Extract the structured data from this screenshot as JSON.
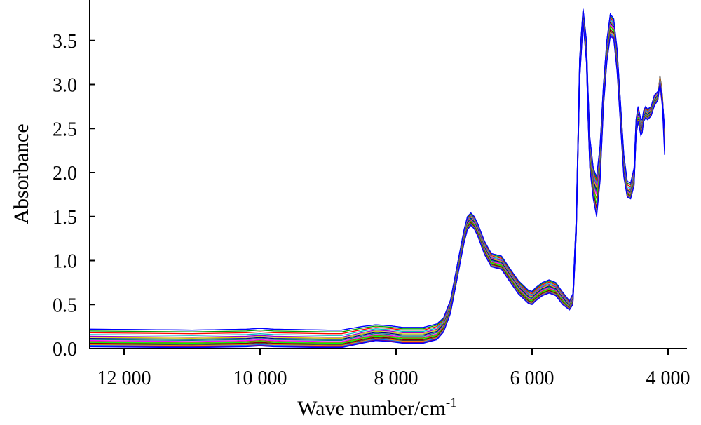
{
  "chart_data": {
    "type": "line",
    "xlabel": "Wave number/cm",
    "xlabel_sup": "-1",
    "ylabel": "Absorbance",
    "xlim": [
      12500,
      4000
    ],
    "ylim": [
      0.0,
      3.9
    ],
    "x_ticks": [
      12000,
      10000,
      8000,
      6000,
      4000
    ],
    "x_tick_labels": [
      "12 000",
      "10 000",
      "8 000",
      "6 000",
      "4 000"
    ],
    "y_ticks": [
      0.0,
      0.5,
      1.0,
      1.5,
      2.0,
      2.5,
      3.0,
      3.5
    ],
    "y_tick_labels": [
      "0.0",
      "0.5",
      "1.0",
      "1.5",
      "2.0",
      "2.5",
      "3.0",
      "3.5"
    ],
    "grid": false,
    "legend": "none",
    "x": [
      12500,
      11000,
      10200,
      10000,
      9800,
      9000,
      8800,
      8500,
      8300,
      8100,
      7900,
      7600,
      7400,
      7300,
      7200,
      7100,
      7000,
      6950,
      6900,
      6850,
      6800,
      6700,
      6600,
      6450,
      6300,
      6200,
      6050,
      6000,
      5950,
      5850,
      5750,
      5650,
      5550,
      5450,
      5400,
      5350,
      5300,
      5250,
      5200,
      5180,
      5150,
      5100,
      5050,
      5000,
      4950,
      4900,
      4850,
      4800,
      4750,
      4700,
      4650,
      4600,
      4550,
      4500,
      4470,
      4440,
      4400,
      4380,
      4360,
      4330,
      4300,
      4250,
      4200,
      4150,
      4120,
      4100,
      4080,
      4050
    ],
    "series": [
      {
        "values": [
          0.22,
          0.21,
          0.22,
          0.23,
          0.22,
          0.21,
          0.21,
          0.25,
          0.27,
          0.26,
          0.24,
          0.24,
          0.28,
          0.35,
          0.55,
          0.95,
          1.35,
          1.5,
          1.54,
          1.5,
          1.42,
          1.22,
          1.08,
          1.05,
          0.88,
          0.77,
          0.66,
          0.65,
          0.69,
          0.75,
          0.78,
          0.75,
          0.64,
          0.54,
          0.62,
          1.5,
          3.3,
          3.86,
          3.5,
          3.0,
          2.4,
          2.05,
          1.95,
          2.3,
          3.0,
          3.5,
          3.8,
          3.75,
          3.4,
          2.8,
          2.2,
          1.9,
          1.88,
          2.05,
          2.6,
          2.75,
          2.6,
          2.6,
          2.7,
          2.75,
          2.72,
          2.75,
          2.88,
          2.92,
          2.98,
          2.9,
          2.8,
          2.5
        ]
      },
      {
        "values": [
          0.14,
          0.13,
          0.14,
          0.15,
          0.14,
          0.13,
          0.13,
          0.18,
          0.21,
          0.2,
          0.18,
          0.18,
          0.22,
          0.3,
          0.5,
          0.9,
          1.3,
          1.45,
          1.5,
          1.46,
          1.38,
          1.17,
          1.03,
          1.0,
          0.83,
          0.72,
          0.61,
          0.6,
          0.64,
          0.7,
          0.73,
          0.7,
          0.6,
          0.5,
          0.58,
          1.45,
          3.2,
          3.82,
          3.4,
          2.9,
          2.3,
          1.95,
          1.85,
          2.2,
          2.9,
          3.4,
          3.72,
          3.68,
          3.3,
          2.7,
          2.1,
          1.82,
          1.8,
          1.97,
          2.52,
          2.68,
          2.52,
          2.55,
          2.65,
          2.7,
          2.68,
          2.72,
          2.85,
          2.9,
          2.95,
          2.85,
          2.75,
          2.45
        ]
      },
      {
        "values": [
          0.09,
          0.08,
          0.09,
          0.1,
          0.09,
          0.08,
          0.08,
          0.13,
          0.16,
          0.15,
          0.13,
          0.13,
          0.17,
          0.26,
          0.46,
          0.86,
          1.26,
          1.41,
          1.46,
          1.42,
          1.34,
          1.13,
          0.99,
          0.96,
          0.79,
          0.68,
          0.57,
          0.56,
          0.6,
          0.66,
          0.69,
          0.66,
          0.56,
          0.47,
          0.55,
          1.4,
          3.15,
          3.78,
          3.35,
          2.8,
          2.2,
          1.85,
          1.75,
          2.1,
          2.85,
          3.35,
          3.68,
          3.64,
          3.25,
          2.65,
          2.05,
          1.78,
          1.76,
          1.92,
          2.48,
          2.64,
          2.48,
          2.5,
          2.62,
          2.66,
          2.64,
          2.68,
          2.8,
          2.86,
          3.05,
          2.95,
          2.8,
          2.4
        ]
      },
      {
        "values": [
          0.05,
          0.04,
          0.05,
          0.06,
          0.05,
          0.04,
          0.04,
          0.09,
          0.12,
          0.11,
          0.09,
          0.09,
          0.13,
          0.22,
          0.42,
          0.82,
          1.22,
          1.37,
          1.42,
          1.38,
          1.3,
          1.09,
          0.95,
          0.92,
          0.75,
          0.64,
          0.53,
          0.52,
          0.56,
          0.62,
          0.65,
          0.62,
          0.52,
          0.45,
          0.52,
          1.35,
          3.1,
          3.75,
          3.3,
          2.75,
          2.1,
          1.75,
          1.55,
          1.95,
          2.8,
          3.3,
          3.6,
          3.58,
          3.2,
          2.6,
          2.0,
          1.75,
          1.72,
          1.88,
          2.45,
          2.6,
          2.45,
          2.48,
          2.6,
          2.64,
          2.62,
          2.66,
          2.78,
          2.84,
          3.1,
          3.0,
          2.85,
          2.35
        ]
      },
      {
        "values": [
          0.02,
          0.01,
          0.02,
          0.03,
          0.02,
          0.01,
          0.01,
          0.06,
          0.09,
          0.08,
          0.06,
          0.06,
          0.1,
          0.19,
          0.4,
          0.8,
          1.2,
          1.35,
          1.4,
          1.36,
          1.28,
          1.07,
          0.93,
          0.9,
          0.73,
          0.62,
          0.51,
          0.5,
          0.54,
          0.6,
          0.63,
          0.6,
          0.5,
          0.44,
          0.5,
          1.3,
          3.05,
          3.7,
          3.25,
          2.7,
          2.05,
          1.7,
          1.5,
          1.9,
          2.75,
          3.25,
          3.55,
          3.52,
          3.15,
          2.55,
          1.95,
          1.72,
          1.7,
          1.85,
          2.42,
          2.58,
          2.42,
          2.45,
          2.58,
          2.62,
          2.6,
          2.64,
          2.76,
          2.82,
          3.0,
          2.9,
          2.7,
          2.2
        ]
      }
    ]
  },
  "colors": {
    "series": [
      "#0000ff",
      "#00a000",
      "#ff0000",
      "#00c0c0",
      "#9900cc",
      "#cccc00",
      "#000080",
      "#008080",
      "#ff00ff",
      "#808000",
      "#00ff00",
      "#800000",
      "#404040",
      "#ff8000",
      "#0080ff",
      "#800080"
    ]
  }
}
